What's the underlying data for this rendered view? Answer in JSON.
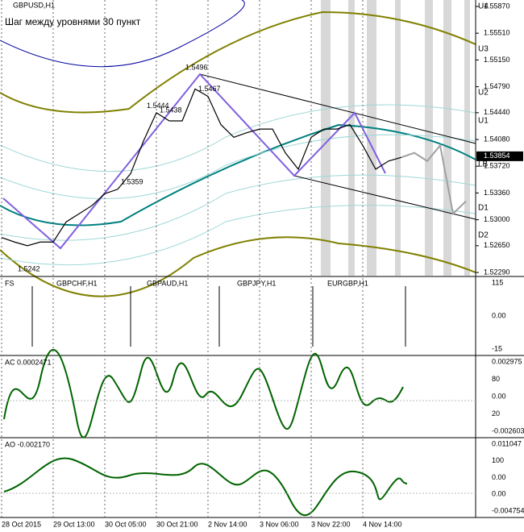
{
  "chart_data": {
    "type": "line",
    "title": "GBPUSD,H1",
    "subtitle": "Шаг между уровнями 30 пункт",
    "categories": [
      "28 Oct 2015",
      null,
      null,
      null,
      "29 Oct 13:00",
      null,
      null,
      null,
      "30 Oct 05:00",
      null,
      null,
      null,
      "30 Oct 21:00",
      null,
      null,
      null,
      "2 Nov 14:00",
      null,
      null,
      null,
      "3 Nov 06:00",
      null,
      null,
      null,
      "3 Nov 22:00",
      null,
      null,
      null,
      "4 Nov 14:00",
      null,
      null,
      null,
      null,
      null,
      null,
      null,
      null
    ],
    "series": [
      {
        "color": "#000000",
        "values": [
          1.5276,
          1.527,
          1.5265,
          1.527,
          1.527,
          1.5297,
          1.5308,
          1.5319,
          1.5335,
          1.5341,
          1.5362,
          1.5406,
          1.5444,
          1.5433,
          1.5433,
          1.5476,
          1.5466,
          1.5428,
          1.5411,
          1.5417,
          1.5422,
          1.5422,
          1.539,
          1.5368,
          1.5411,
          1.5422,
          1.5422,
          1.5428,
          1.54,
          1.5368,
          1.5379,
          1.5384,
          null,
          null,
          null,
          null,
          null
        ]
      },
      {
        "color": "#a0a0a0",
        "values": [
          null,
          null,
          null,
          null,
          null,
          null,
          null,
          null,
          null,
          null,
          null,
          null,
          null,
          null,
          null,
          null,
          null,
          null,
          null,
          null,
          null,
          null,
          null,
          null,
          null,
          null,
          null,
          null,
          null,
          null,
          null,
          1.5384,
          1.539,
          1.5379,
          1.54,
          1.5308,
          1.5325
        ]
      }
    ],
    "ylim": [
      1.52247,
      1.55957
    ],
    "yticks": [
      {
        "value": 1.5587,
        "label": "1.55870"
      },
      {
        "value": 1.5551,
        "label": "1.55510"
      },
      {
        "value": 1.5515,
        "label": "1.55150"
      },
      {
        "value": 1.5479,
        "label": "1.54790"
      },
      {
        "value": 1.5444,
        "label": "1.54440"
      },
      {
        "value": 1.5408,
        "label": "1.54080"
      },
      {
        "value": 1.5372,
        "label": "1.53720"
      },
      {
        "value": 1.5336,
        "label": "1.53360"
      },
      {
        "value": 1.53,
        "label": "1.53000"
      },
      {
        "value": 1.5265,
        "label": "1.52650"
      },
      {
        "value": 1.5229,
        "label": "1.52290"
      }
    ],
    "current_price": {
      "value": 1.53854,
      "label": "1.53854"
    },
    "levels": [
      {
        "label": "U4",
        "value": 1.5587
      },
      {
        "label": "U3",
        "value": 1.55295
      },
      {
        "label": "U2",
        "value": 1.54709
      },
      {
        "label": "U1",
        "value": 1.54329
      },
      {
        "label": "LB",
        "value": 1.53744
      },
      {
        "label": "D1",
        "value": 1.53158
      },
      {
        "label": "D2",
        "value": 1.52789
      }
    ],
    "annotations": [
      {
        "label": "1.5496",
        "value": 1.5496
      },
      {
        "label": "1.5467",
        "value": 1.5467
      },
      {
        "label": "1.5242",
        "value": 1.5242
      },
      {
        "label": "1.5359",
        "value": 1.5359
      },
      {
        "label": "1.5438",
        "value": 1.5438
      },
      {
        "label": "1.5444",
        "value": 1.5444
      }
    ]
  },
  "panels": [
    {
      "title": "FS",
      "labels": [
        "GBPCHF,H1",
        "GBPAUD,H1",
        "GBPJPY,H1",
        "EURGBP,H1"
      ],
      "axis": [
        "115",
        "0.00",
        "-15"
      ]
    },
    {
      "title": "AC 0.0002471",
      "labels": [],
      "axis": [
        "0.002975",
        "80",
        "0.00",
        "20",
        "-0.002603"
      ]
    },
    {
      "title": "AO -0.002170",
      "labels": [],
      "axis": [
        "0.011047",
        "100",
        "0.00",
        "0.00",
        "-0.004754"
      ]
    }
  ]
}
